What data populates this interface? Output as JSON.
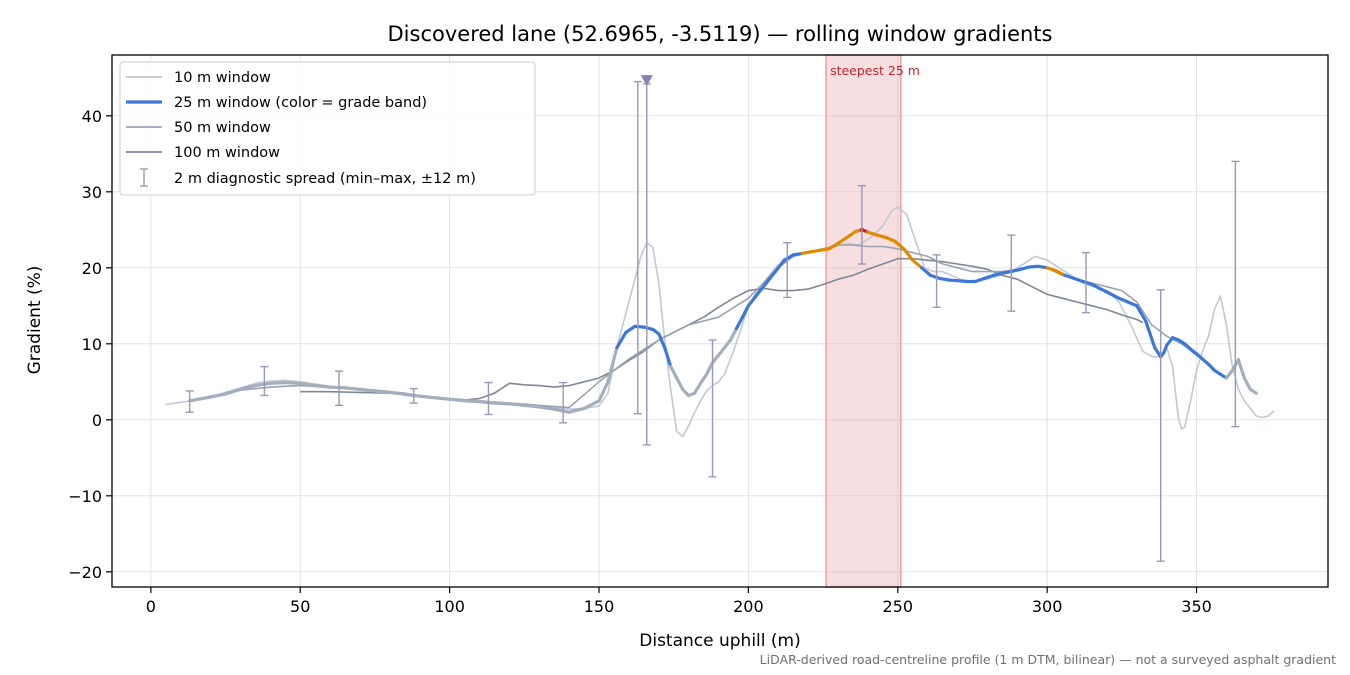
{
  "chart_data": {
    "type": "line",
    "title": "Discovered lane (52.6965, -3.5119) — rolling window gradients",
    "xlabel": "Distance uphill (m)",
    "ylabel": "Gradient (%)",
    "xlim": [
      -13,
      394
    ],
    "ylim": [
      -22,
      48
    ],
    "xticks": [
      0,
      50,
      100,
      150,
      200,
      250,
      300,
      350
    ],
    "yticks": [
      -20,
      -10,
      0,
      10,
      20,
      30,
      40
    ],
    "xtick_labels": [
      "0",
      "50",
      "100",
      "150",
      "200",
      "250",
      "300",
      "350"
    ],
    "ytick_labels": [
      "−20",
      "−10",
      "0",
      "10",
      "20",
      "30",
      "40"
    ],
    "grid": true,
    "legend_position": "top-left",
    "highlight_band": {
      "x0": 226,
      "x1": 251,
      "label": "steepest 25 m",
      "color": "#e8a3a8"
    },
    "series": [
      {
        "name": "10 m window",
        "color": "#c3c8d2",
        "x": [
          5,
          10,
          15,
          20,
          25,
          30,
          35,
          40,
          45,
          50,
          55,
          60,
          65,
          70,
          75,
          80,
          85,
          90,
          95,
          100,
          105,
          110,
          115,
          120,
          125,
          130,
          135,
          140,
          145,
          150,
          153,
          156,
          159,
          162,
          164,
          166,
          168,
          170,
          172,
          174,
          176,
          178,
          180,
          182,
          184,
          186,
          188,
          190,
          192,
          195,
          198,
          200,
          203,
          206,
          209,
          212,
          215,
          218,
          221,
          225,
          229,
          233,
          237,
          241,
          245,
          248,
          250,
          253,
          256,
          259,
          262,
          265,
          268,
          271,
          274,
          277,
          280,
          284,
          288,
          292,
          296,
          300,
          304,
          308,
          312,
          316,
          320,
          324,
          328,
          332,
          336,
          338,
          340,
          342,
          344,
          345,
          346,
          348,
          350,
          352,
          354,
          356,
          358,
          360,
          362,
          364,
          366,
          368,
          370,
          372,
          374,
          376
        ],
        "y": [
          2.0,
          2.3,
          2.6,
          3.0,
          3.6,
          4.2,
          4.8,
          5.1,
          5.2,
          5.0,
          4.7,
          4.4,
          4.3,
          4.0,
          3.8,
          3.6,
          3.2,
          3.0,
          2.9,
          2.7,
          2.6,
          2.5,
          2.3,
          2.2,
          2.1,
          1.9,
          1.6,
          1.4,
          1.5,
          1.8,
          3.5,
          9.5,
          14.0,
          18.5,
          21.5,
          23.3,
          22.7,
          18.0,
          10.5,
          4.0,
          -1.5,
          -2.2,
          -0.8,
          1.0,
          2.5,
          3.8,
          4.5,
          5.0,
          6.0,
          9.0,
          12.5,
          15.0,
          17.0,
          18.5,
          20.0,
          21.0,
          21.5,
          22.0,
          22.2,
          22.5,
          22.8,
          23.2,
          23.0,
          24.0,
          25.5,
          27.5,
          28.0,
          27.0,
          23.5,
          20.0,
          19.5,
          19.5,
          19.0,
          18.5,
          18.2,
          18.3,
          18.5,
          19.0,
          19.5,
          20.5,
          21.5,
          21.0,
          20.0,
          19.0,
          18.0,
          17.5,
          17.0,
          15.5,
          12.5,
          9.0,
          8.2,
          8.5,
          9.5,
          7.0,
          0.0,
          -1.2,
          -1.0,
          2.5,
          6.5,
          9.0,
          11.0,
          14.5,
          16.3,
          12.5,
          7.0,
          4.0,
          2.5,
          1.5,
          0.5,
          0.3,
          0.5,
          1.2
        ]
      },
      {
        "name": "25 m window (color = grade band)",
        "color": "#3d78d8",
        "band_colors": {
          "mild": "#a4aebd",
          "moderate": "#3d78d8",
          "steep": "#e08a00",
          "max": "#c0272d"
        },
        "x": [
          13,
          20,
          25,
          30,
          35,
          40,
          45,
          50,
          55,
          60,
          65,
          70,
          75,
          80,
          85,
          90,
          95,
          100,
          105,
          110,
          115,
          120,
          125,
          130,
          135,
          140,
          145,
          150,
          153,
          156,
          159,
          162,
          165,
          168,
          170,
          172,
          174,
          176,
          178,
          180,
          182,
          184,
          186,
          188,
          190,
          192,
          194,
          196,
          198,
          200,
          203,
          206,
          209,
          212,
          215,
          218,
          221,
          224,
          227,
          230,
          233,
          236,
          238,
          240,
          243,
          246,
          249,
          252,
          255,
          258,
          261,
          264,
          267,
          270,
          273,
          276,
          279,
          282,
          285,
          288,
          291,
          294,
          297,
          300,
          303,
          306,
          309,
          312,
          315,
          318,
          321,
          324,
          327,
          330,
          333,
          336,
          338,
          339,
          340,
          342,
          344,
          346,
          348,
          350,
          352,
          354,
          356,
          358,
          360,
          362,
          364,
          366,
          368,
          370
        ],
        "y": [
          2.5,
          3.0,
          3.4,
          4.0,
          4.5,
          4.8,
          4.9,
          4.8,
          4.5,
          4.3,
          4.2,
          4.0,
          3.8,
          3.6,
          3.4,
          3.1,
          2.9,
          2.7,
          2.5,
          2.4,
          2.2,
          2.1,
          1.9,
          1.7,
          1.4,
          1.0,
          1.5,
          2.5,
          5.0,
          9.5,
          11.5,
          12.3,
          12.2,
          11.9,
          11.3,
          9.5,
          7.0,
          5.5,
          4.0,
          3.2,
          3.5,
          4.8,
          6.0,
          7.5,
          8.5,
          9.5,
          10.5,
          12.0,
          13.5,
          15.0,
          16.5,
          18.0,
          19.5,
          21.0,
          21.7,
          21.9,
          22.1,
          22.3,
          22.5,
          23.2,
          24.0,
          24.8,
          25.0,
          24.7,
          24.3,
          24.0,
          23.5,
          22.5,
          21.0,
          20.0,
          19.0,
          18.6,
          18.4,
          18.3,
          18.2,
          18.2,
          18.6,
          19.0,
          19.3,
          19.5,
          19.8,
          20.1,
          20.2,
          20.0,
          19.6,
          19.0,
          18.6,
          18.2,
          17.8,
          17.2,
          16.6,
          16.0,
          15.5,
          15.0,
          13.0,
          9.5,
          8.3,
          8.8,
          9.8,
          10.8,
          10.5,
          10.0,
          9.3,
          8.7,
          8.0,
          7.3,
          6.5,
          6.0,
          5.5,
          6.5,
          7.9,
          5.5,
          4.0,
          3.5
        ],
        "band_label_by_point": [
          "mild",
          "mild",
          "mild",
          "mild",
          "mild",
          "mild",
          "mild",
          "mild",
          "mild",
          "mild",
          "mild",
          "mild",
          "mild",
          "mild",
          "mild",
          "mild",
          "mild",
          "mild",
          "mild",
          "mild",
          "mild",
          "mild",
          "mild",
          "mild",
          "mild",
          "mild",
          "mild",
          "mild",
          "mild",
          "moderate",
          "moderate",
          "moderate",
          "moderate",
          "moderate",
          "moderate",
          "moderate",
          "mild",
          "mild",
          "mild",
          "mild",
          "mild",
          "mild",
          "mild",
          "mild",
          "mild",
          "mild",
          "mild",
          "moderate",
          "moderate",
          "moderate",
          "moderate",
          "moderate",
          "moderate",
          "moderate",
          "moderate",
          "steep",
          "steep",
          "steep",
          "steep",
          "steep",
          "steep",
          "steep",
          "max",
          "steep",
          "steep",
          "steep",
          "steep",
          "steep",
          "steep",
          "moderate",
          "moderate",
          "moderate",
          "moderate",
          "moderate",
          "moderate",
          "moderate",
          "moderate",
          "moderate",
          "moderate",
          "moderate",
          "moderate",
          "moderate",
          "moderate",
          "steep",
          "steep",
          "moderate",
          "moderate",
          "moderate",
          "moderate",
          "moderate",
          "moderate",
          "moderate",
          "moderate",
          "moderate",
          "moderate",
          "moderate",
          "moderate",
          "moderate",
          "moderate",
          "moderate",
          "moderate",
          "moderate",
          "moderate",
          "moderate",
          "moderate",
          "moderate",
          "moderate",
          "moderate",
          "mild",
          "mild",
          "mild",
          "mild",
          "mild",
          "mild"
        ]
      },
      {
        "name": "50 m window",
        "color": "#9aa3b3",
        "x": [
          25,
          30,
          40,
          50,
          60,
          70,
          80,
          90,
          100,
          110,
          120,
          130,
          140,
          150,
          160,
          170,
          180,
          190,
          200,
          210,
          215,
          220,
          225,
          230,
          235,
          240,
          245,
          250,
          255,
          260,
          265,
          270,
          275,
          280,
          285,
          290,
          295,
          300,
          305,
          310,
          315,
          320,
          325,
          330,
          335,
          340,
          345,
          350,
          355
        ],
        "y": [
          3.6,
          3.9,
          4.3,
          4.5,
          4.3,
          4.0,
          3.6,
          3.2,
          2.8,
          2.5,
          2.2,
          1.9,
          1.6,
          5.0,
          8.0,
          10.5,
          12.5,
          13.5,
          16.0,
          20.0,
          21.5,
          22.0,
          22.5,
          23.0,
          23.0,
          22.8,
          22.8,
          22.5,
          22.0,
          21.5,
          20.5,
          20.0,
          19.5,
          19.5,
          19.5,
          19.8,
          20.2,
          20.0,
          19.0,
          18.5,
          18.0,
          17.5,
          17.0,
          15.5,
          12.5,
          11.0,
          10.0,
          8.5,
          7.0
        ]
      },
      {
        "name": "100 m window",
        "color": "#7f8797",
        "x": [
          50,
          60,
          70,
          80,
          90,
          100,
          105,
          110,
          115,
          120,
          125,
          130,
          135,
          140,
          145,
          150,
          155,
          160,
          165,
          170,
          175,
          180,
          185,
          190,
          195,
          200,
          205,
          210,
          215,
          220,
          225,
          230,
          235,
          240,
          245,
          250,
          255,
          260,
          265,
          270,
          275,
          280,
          285,
          290,
          295,
          300,
          305,
          310,
          315,
          320,
          325,
          330,
          332
        ],
        "y": [
          3.7,
          3.7,
          3.6,
          3.5,
          3.2,
          2.8,
          2.6,
          2.8,
          3.5,
          4.8,
          4.6,
          4.5,
          4.3,
          4.5,
          5.0,
          5.5,
          6.5,
          7.8,
          9.0,
          10.5,
          11.5,
          12.5,
          13.5,
          14.8,
          16.0,
          17.0,
          17.3,
          17.0,
          17.0,
          17.2,
          17.8,
          18.5,
          19.0,
          19.8,
          20.5,
          21.2,
          21.2,
          21.0,
          20.8,
          20.5,
          20.2,
          19.8,
          19.0,
          18.5,
          17.5,
          16.5,
          16.0,
          15.5,
          15.0,
          14.5,
          13.8,
          13.2,
          12.8
        ]
      },
      {
        "name": "2 m diagnostic spread (min–max, ±12 m)",
        "color": "#9b97b8",
        "type": "errorbar",
        "points": [
          {
            "x": 13,
            "low": 1.0,
            "high": 3.8
          },
          {
            "x": 38,
            "low": 3.2,
            "high": 7.0
          },
          {
            "x": 63,
            "low": 1.9,
            "high": 6.4
          },
          {
            "x": 88,
            "low": 2.2,
            "high": 4.1
          },
          {
            "x": 113,
            "low": 0.7,
            "high": 4.9
          },
          {
            "x": 138,
            "low": -0.4,
            "high": 4.9
          },
          {
            "x": 163,
            "low": 0.8,
            "high": 44.5
          },
          {
            "x": 166,
            "low": -3.3,
            "high": 44.2
          },
          {
            "x": 188,
            "low": -7.5,
            "high": 10.5
          },
          {
            "x": 213,
            "low": 16.1,
            "high": 23.3
          },
          {
            "x": 238,
            "low": 20.5,
            "high": 30.8
          },
          {
            "x": 263,
            "low": 14.8,
            "high": 21.7
          },
          {
            "x": 288,
            "low": 14.3,
            "high": 24.3
          },
          {
            "x": 313,
            "low": 14.1,
            "high": 22.0
          },
          {
            "x": 338,
            "low": -18.6,
            "high": 17.1
          },
          {
            "x": 363,
            "low": -0.9,
            "high": 34.0
          }
        ],
        "clipped_marker": {
          "x": 166,
          "y": 44.7
        }
      }
    ],
    "footnote": "LiDAR-derived road-centreline profile (1 m DTM, bilinear) — not a surveyed asphalt gradient"
  }
}
